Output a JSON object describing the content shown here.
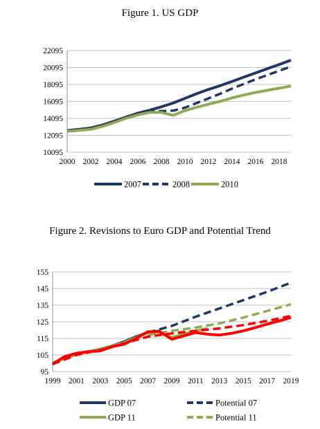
{
  "figures": {
    "fig1": {
      "title": "Figure 1. US GDP"
    },
    "fig2": {
      "title": "Figure 2. Revisions to Euro GDP and Potential Trend"
    }
  },
  "chart_data": [
    {
      "type": "line",
      "title": "Figure 1. US GDP",
      "xlabel": "",
      "ylabel": "",
      "xlim": [
        2000,
        2019
      ],
      "ylim": [
        10095,
        22095
      ],
      "x_ticks": [
        2000,
        2002,
        2004,
        2006,
        2008,
        2010,
        2012,
        2014,
        2016,
        2018
      ],
      "y_ticks": [
        10095,
        12095,
        14095,
        16095,
        18095,
        20095,
        22095
      ],
      "grid": "horizontal",
      "legend_position": "bottom",
      "series": [
        {
          "name": "2007",
          "color": "#1f3864",
          "dash": "solid",
          "x": [
            2000,
            2002,
            2003,
            2004,
            2005,
            2006,
            2007,
            2008,
            2009,
            2010,
            2011,
            2012,
            2013,
            2014,
            2015,
            2016,
            2017,
            2018,
            2019
          ],
          "y": [
            12650,
            12950,
            13300,
            13750,
            14250,
            14700,
            15050,
            15450,
            15900,
            16450,
            17000,
            17500,
            17950,
            18450,
            18950,
            19450,
            19950,
            20450,
            20950
          ]
        },
        {
          "name": "2008",
          "color": "#1f3864",
          "dash": "dashed",
          "x": [
            2000,
            2002,
            2003,
            2004,
            2005,
            2006,
            2007,
            2008,
            2009,
            2010,
            2011,
            2012,
            2013,
            2014,
            2015,
            2016,
            2017,
            2018,
            2019
          ],
          "y": [
            12600,
            12900,
            13250,
            13700,
            14200,
            14650,
            14900,
            14950,
            15000,
            15350,
            15900,
            16450,
            17000,
            17600,
            18150,
            18700,
            19200,
            19700,
            20200
          ]
        },
        {
          "name": "2010",
          "color": "#8faa50",
          "dash": "solid",
          "x": [
            2000,
            2002,
            2003,
            2004,
            2005,
            2006,
            2007,
            2008,
            2009,
            2010,
            2011,
            2012,
            2013,
            2014,
            2015,
            2016,
            2017,
            2018,
            2019
          ],
          "y": [
            12550,
            12800,
            13150,
            13600,
            14100,
            14500,
            14800,
            14800,
            14450,
            15000,
            15400,
            15750,
            16100,
            16500,
            16850,
            17150,
            17400,
            17650,
            17900
          ]
        }
      ]
    },
    {
      "type": "line",
      "title": "Figure 2. Revisions to Euro GDP and Potential Trend",
      "xlabel": "",
      "ylabel": "",
      "xlim": [
        1999,
        2019
      ],
      "ylim": [
        95,
        155
      ],
      "x_ticks": [
        1999,
        2001,
        2003,
        2005,
        2007,
        2009,
        2011,
        2013,
        2015,
        2017,
        2019
      ],
      "y_ticks": [
        95,
        105,
        115,
        125,
        135,
        145,
        155
      ],
      "grid": "horizontal",
      "legend_position": "bottom",
      "series": [
        {
          "name": "GDP 07",
          "color": "#1f3864",
          "dash": "solid",
          "x": [
            1999,
            2000,
            2001,
            2002,
            2003,
            2004,
            2005,
            2006,
            2007,
            2008
          ],
          "y": [
            100,
            103,
            105.5,
            107,
            108.5,
            110.5,
            113,
            116,
            118.5,
            119.5
          ]
        },
        {
          "name": "Potential 07",
          "color": "#1f3864",
          "dash": "dashed",
          "x": [
            2007,
            2009,
            2011,
            2013,
            2015,
            2017,
            2019
          ],
          "y": [
            118.5,
            122.5,
            128,
            133,
            138,
            143,
            148.5
          ]
        },
        {
          "name": "GDP 11",
          "color": "#8faa50",
          "dash": "solid",
          "x": [
            1999,
            2000,
            2001,
            2002,
            2003,
            2004,
            2005,
            2006,
            2007,
            2008,
            2009,
            2010,
            2011,
            2012
          ],
          "y": [
            100,
            103,
            105.5,
            107,
            108.5,
            110.5,
            112.5,
            115.5,
            118.5,
            119,
            115.5,
            117.5,
            119.5,
            121
          ]
        },
        {
          "name": "Potential 11",
          "color": "#8faa50",
          "dash": "dashed",
          "x": [
            2007,
            2009,
            2011,
            2013,
            2015,
            2017,
            2019
          ],
          "y": [
            117,
            119.5,
            121.5,
            124,
            127.5,
            131.5,
            135.5
          ]
        },
        {
          "name": "",
          "color": "#ff0000",
          "dash": "solid",
          "x": [
            1999,
            2000,
            2001,
            2002,
            2003,
            2004,
            2005,
            2006,
            2007,
            2008,
            2009,
            2010,
            2011,
            2012,
            2013,
            2014,
            2015,
            2016,
            2017,
            2018,
            2019
          ],
          "y": [
            99.5,
            104,
            106,
            107,
            107.5,
            110,
            111.5,
            115,
            119,
            119,
            114.5,
            116.5,
            118.5,
            117.5,
            117,
            118,
            119.5,
            121.5,
            123.5,
            125.5,
            127.5
          ]
        },
        {
          "name": "",
          "color": "#ff0000",
          "dash": "dashed",
          "x": [
            1999,
            2001,
            2003,
            2005,
            2007,
            2009,
            2011,
            2013,
            2015,
            2017,
            2019
          ],
          "y": [
            99.5,
            105,
            108,
            112,
            116,
            118,
            119.5,
            121,
            123,
            125.5,
            128.5
          ]
        }
      ]
    }
  ]
}
